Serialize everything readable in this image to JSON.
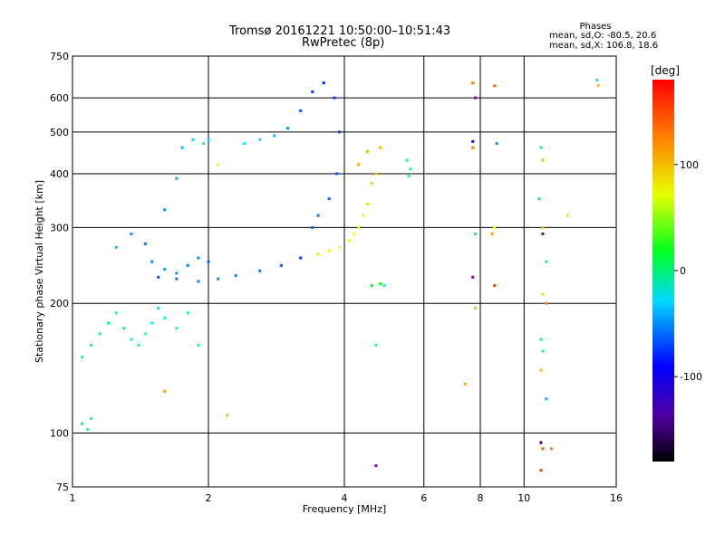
{
  "chart_data": {
    "type": "scatter",
    "title": "Tromsø 20161221 10:50:00–10:51:43",
    "subtitle": "RwPretec (8p)",
    "xlabel": "Frequency [MHz]",
    "ylabel": "Stationary phase Virtual Height [km]",
    "x_scale": "log",
    "y_scale": "log",
    "xlim": [
      1,
      16
    ],
    "ylim": [
      75,
      750
    ],
    "x_ticks": [
      "1",
      "2",
      "4",
      "6",
      "8",
      "10",
      "16"
    ],
    "y_ticks": [
      "75",
      "100",
      "200",
      "300",
      "400",
      "500",
      "600",
      "750"
    ],
    "grid": true,
    "colorbar": {
      "label": "[deg]",
      "range": [
        -180,
        180
      ],
      "ticks": [
        "100",
        "0",
        "-100"
      ]
    },
    "stats": {
      "title": "Phases",
      "line1": "mean, sd,O: -80.5, 20.6",
      "line2": "mean, sd,X: 106.8, 18.6"
    },
    "series": [
      {
        "points": [
          [
            1.05,
            150,
            -30
          ],
          [
            1.1,
            160,
            -20
          ],
          [
            1.15,
            170,
            -40
          ],
          [
            1.2,
            180,
            -25
          ],
          [
            1.25,
            190,
            -35
          ],
          [
            1.3,
            175,
            -20
          ],
          [
            1.35,
            165,
            -30
          ],
          [
            1.4,
            160,
            -45
          ],
          [
            1.45,
            170,
            -55
          ],
          [
            1.5,
            180,
            -60
          ],
          [
            1.55,
            195,
            -65
          ],
          [
            1.6,
            185,
            -50
          ],
          [
            1.7,
            175,
            -45
          ],
          [
            1.8,
            190,
            -40
          ],
          [
            1.05,
            105,
            -20
          ],
          [
            1.08,
            102,
            -30
          ],
          [
            1.1,
            108,
            -40
          ],
          [
            1.25,
            270,
            -80
          ],
          [
            1.35,
            290,
            -90
          ],
          [
            1.45,
            275,
            -100
          ],
          [
            1.5,
            250,
            -95
          ],
          [
            1.6,
            240,
            -85
          ],
          [
            1.7,
            235,
            -90
          ],
          [
            1.8,
            245,
            -100
          ],
          [
            1.9,
            255,
            -95
          ],
          [
            2.0,
            250,
            -105
          ],
          [
            1.55,
            230,
            -110
          ],
          [
            1.7,
            228,
            -100
          ],
          [
            1.9,
            225,
            -95
          ],
          [
            2.1,
            228,
            -90
          ],
          [
            2.3,
            232,
            -95
          ],
          [
            2.6,
            238,
            -100
          ],
          [
            2.9,
            245,
            -110
          ],
          [
            3.2,
            255,
            -120
          ],
          [
            1.6,
            330,
            -90
          ],
          [
            1.7,
            390,
            -85
          ],
          [
            1.75,
            460,
            -80
          ],
          [
            1.85,
            480,
            -70
          ],
          [
            1.95,
            470,
            -60
          ],
          [
            2.0,
            480,
            -70
          ],
          [
            2.4,
            470,
            -60
          ],
          [
            2.6,
            480,
            -70
          ],
          [
            2.8,
            490,
            -80
          ],
          [
            3.0,
            510,
            -90
          ],
          [
            3.2,
            560,
            -110
          ],
          [
            3.4,
            620,
            -120
          ],
          [
            3.6,
            650,
            -125
          ],
          [
            3.8,
            600,
            -120
          ],
          [
            3.9,
            500,
            -115
          ],
          [
            3.85,
            400,
            -110
          ],
          [
            3.7,
            350,
            -105
          ],
          [
            3.5,
            320,
            -100
          ],
          [
            3.4,
            300,
            -105
          ],
          [
            3.5,
            260,
            110
          ],
          [
            3.7,
            265,
            105
          ],
          [
            3.9,
            270,
            100
          ],
          [
            4.1,
            280,
            95
          ],
          [
            4.3,
            300,
            100
          ],
          [
            4.5,
            340,
            110
          ],
          [
            4.6,
            380,
            115
          ],
          [
            4.7,
            400,
            120
          ],
          [
            4.4,
            320,
            105
          ],
          [
            4.2,
            290,
            100
          ],
          [
            4.3,
            420,
            130
          ],
          [
            4.5,
            450,
            125
          ],
          [
            4.8,
            460,
            120
          ],
          [
            5.5,
            430,
            -30
          ],
          [
            5.6,
            410,
            -20
          ],
          [
            5.55,
            395,
            -25
          ],
          [
            4.6,
            220,
            10
          ],
          [
            4.8,
            222,
            30
          ],
          [
            4.9,
            220,
            -60
          ],
          [
            4.7,
            160,
            -30
          ],
          [
            7.7,
            650,
            140
          ],
          [
            7.8,
            600,
            -140
          ],
          [
            7.7,
            475,
            -130
          ],
          [
            7.7,
            460,
            140
          ],
          [
            7.8,
            290,
            -10
          ],
          [
            7.7,
            230,
            -140
          ],
          [
            7.8,
            195,
            120
          ],
          [
            7.4,
            130,
            130
          ],
          [
            8.6,
            640,
            150
          ],
          [
            8.7,
            470,
            -90
          ],
          [
            8.6,
            300,
            100
          ],
          [
            8.5,
            290,
            130
          ],
          [
            8.6,
            220,
            160
          ],
          [
            10.9,
            460,
            -20
          ],
          [
            11.0,
            430,
            60
          ],
          [
            10.8,
            350,
            -10
          ],
          [
            11.0,
            300,
            120
          ],
          [
            11.0,
            290,
            -150
          ],
          [
            11.2,
            250,
            -20
          ],
          [
            11.0,
            210,
            80
          ],
          [
            11.2,
            200,
            140
          ],
          [
            10.9,
            165,
            -20
          ],
          [
            11.0,
            155,
            -30
          ],
          [
            10.9,
            140,
            120
          ],
          [
            11.2,
            120,
            -80
          ],
          [
            10.9,
            95,
            -170
          ],
          [
            11.0,
            92,
            150
          ],
          [
            10.9,
            82,
            160
          ],
          [
            11.5,
            92,
            140
          ],
          [
            14.5,
            660,
            -30
          ],
          [
            14.6,
            640,
            120
          ],
          [
            12.5,
            320,
            110
          ],
          [
            4.7,
            84,
            -140
          ],
          [
            1.6,
            125,
            130
          ],
          [
            2.2,
            110,
            120
          ],
          [
            2.1,
            420,
            100
          ],
          [
            1.9,
            160,
            -60
          ]
        ]
      }
    ]
  }
}
